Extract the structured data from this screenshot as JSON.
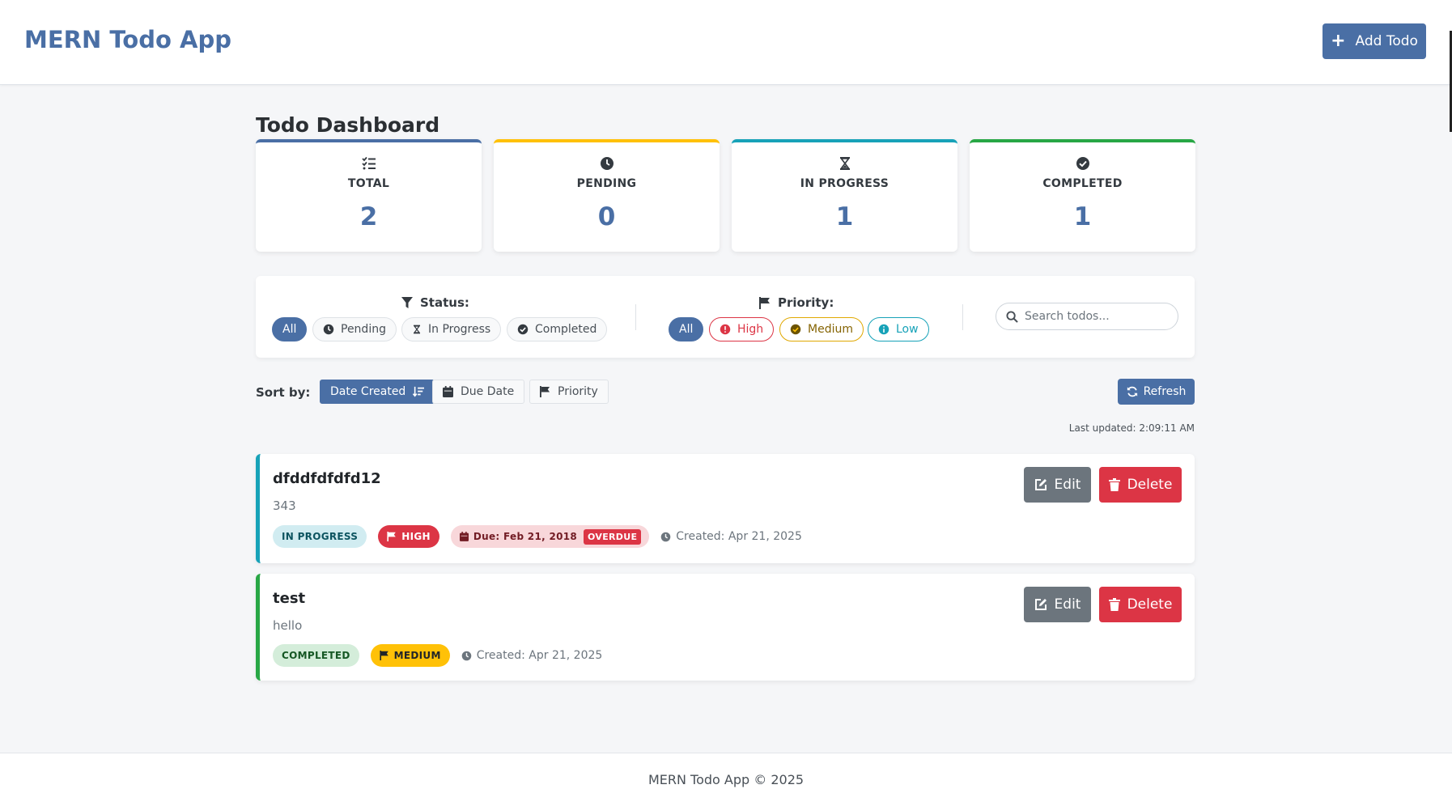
{
  "header": {
    "brand": "MERN Todo App",
    "add_button": "Add Todo"
  },
  "dashboard": {
    "title": "Todo Dashboard",
    "stats": [
      {
        "label": "TOTAL",
        "value": "2",
        "icon": "list-check-icon",
        "color": "#4a6fa5"
      },
      {
        "label": "PENDING",
        "value": "0",
        "icon": "clock-icon",
        "color": "#ffc107"
      },
      {
        "label": "IN PROGRESS",
        "value": "1",
        "icon": "hourglass-icon",
        "color": "#17a2b8"
      },
      {
        "label": "COMPLETED",
        "value": "1",
        "icon": "check-circle-icon",
        "color": "#28a745"
      }
    ]
  },
  "filters": {
    "status_label": "Status:",
    "status_options": [
      "All",
      "Pending",
      "In Progress",
      "Completed"
    ],
    "status_selected": "All",
    "priority_label": "Priority:",
    "priority_options": [
      "All",
      "High",
      "Medium",
      "Low"
    ],
    "priority_selected": "All",
    "search_placeholder": "Search todos..."
  },
  "sort": {
    "label": "Sort by:",
    "options": [
      "Date Created",
      "Due Date",
      "Priority"
    ],
    "selected": "Date Created",
    "refresh": "Refresh",
    "last_updated": "Last updated: 2:09:11 AM"
  },
  "todos": [
    {
      "title": "dfddfdfdfd12",
      "description": "343",
      "status": "IN PROGRESS",
      "priority": "HIGH",
      "due": "Due: Feb 21, 2018",
      "overdue": "OVERDUE",
      "created": "Created: Apr 21, 2025",
      "accent": "#17a2b8"
    },
    {
      "title": "test",
      "description": "hello",
      "status": "COMPLETED",
      "priority": "MEDIUM",
      "created": "Created: Apr 21, 2025",
      "accent": "#28a745"
    }
  ],
  "actions": {
    "edit": "Edit",
    "delete": "Delete"
  },
  "footer": {
    "text": "MERN Todo App © 2025"
  }
}
